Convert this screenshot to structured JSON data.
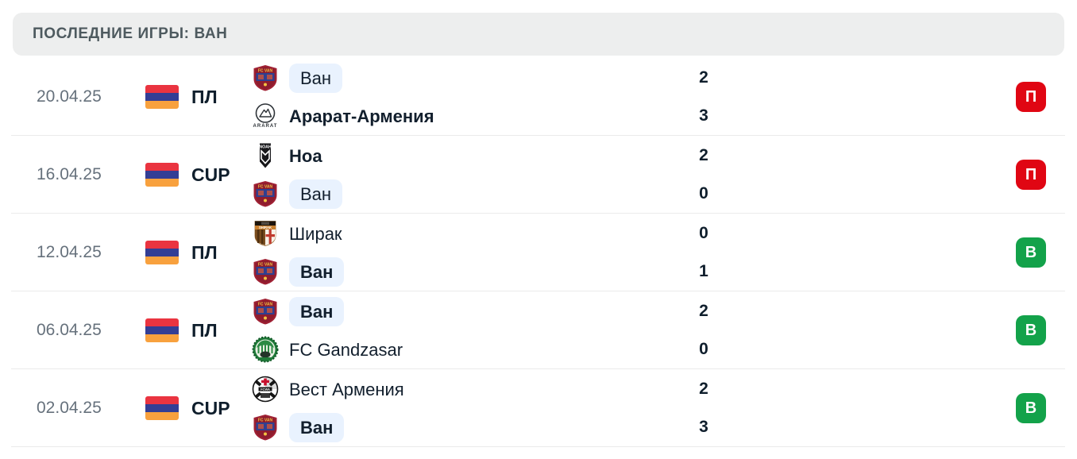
{
  "header": {
    "title": "ПОСЛЕДНИЕ ИГРЫ: ВАН"
  },
  "colors": {
    "win_badge": "#13a24a",
    "loss_badge": "#e00613",
    "team_highlight": "#e9f2fe",
    "flag_red": "#ea3440",
    "flag_blue": "#333e95",
    "flag_orange": "#f8a13e"
  },
  "matches": [
    {
      "date": "20.04.25",
      "flag": "armenia",
      "competition": "ПЛ",
      "home": {
        "name": "Ван",
        "logo": "fc-van",
        "score": "2",
        "highlighted": true,
        "bold": false
      },
      "away": {
        "name": "Арарат-Армения",
        "logo": "ararat-armenia",
        "score": "3",
        "highlighted": false,
        "bold": true
      },
      "result": "П",
      "result_type": "loss"
    },
    {
      "date": "16.04.25",
      "flag": "armenia",
      "competition": "CUP",
      "home": {
        "name": "Ноа",
        "logo": "noah",
        "score": "2",
        "highlighted": false,
        "bold": true
      },
      "away": {
        "name": "Ван",
        "logo": "fc-van",
        "score": "0",
        "highlighted": true,
        "bold": false
      },
      "result": "П",
      "result_type": "loss"
    },
    {
      "date": "12.04.25",
      "flag": "armenia",
      "competition": "ПЛ",
      "home": {
        "name": "Ширак",
        "logo": "shirak",
        "score": "0",
        "highlighted": false,
        "bold": false
      },
      "away": {
        "name": "Ван",
        "logo": "fc-van",
        "score": "1",
        "highlighted": true,
        "bold": true
      },
      "result": "В",
      "result_type": "win"
    },
    {
      "date": "06.04.25",
      "flag": "armenia",
      "competition": "ПЛ",
      "home": {
        "name": "Ван",
        "logo": "fc-van",
        "score": "2",
        "highlighted": true,
        "bold": true
      },
      "away": {
        "name": "FC Gandzasar",
        "logo": "gandzasar",
        "score": "0",
        "highlighted": false,
        "bold": false
      },
      "result": "В",
      "result_type": "win"
    },
    {
      "date": "02.04.25",
      "flag": "armenia",
      "competition": "CUP",
      "home": {
        "name": "Вест Армения",
        "logo": "west-armenia",
        "score": "2",
        "highlighted": false,
        "bold": false
      },
      "away": {
        "name": "Ван",
        "logo": "fc-van",
        "score": "3",
        "highlighted": true,
        "bold": true
      },
      "result": "В",
      "result_type": "win"
    }
  ]
}
